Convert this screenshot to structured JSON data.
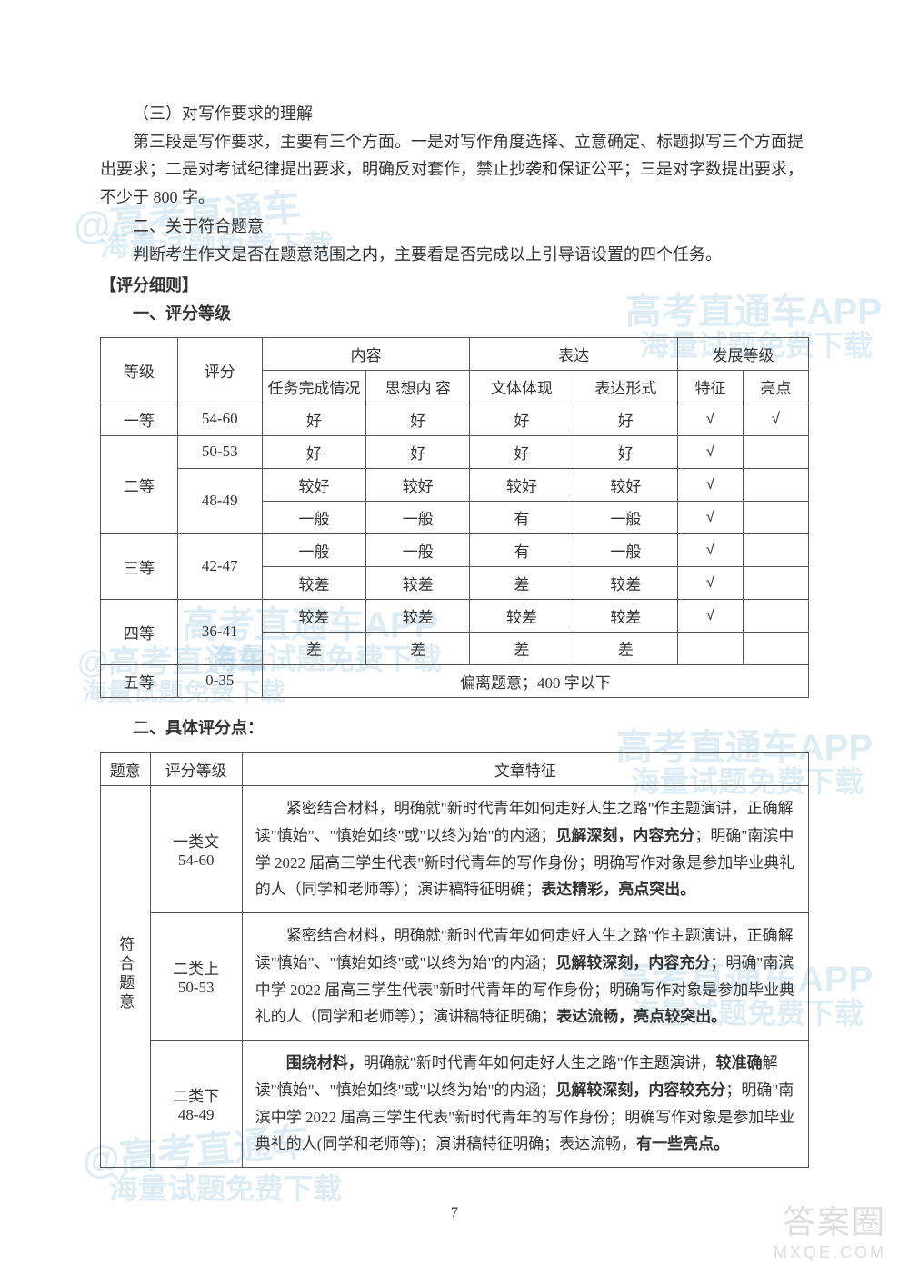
{
  "watermarks": {
    "main": "@高考直通车",
    "sub": "海量试题免费下载",
    "app": "高考直通车APP",
    "bottom_main": "答案圈",
    "bottom_sub": "MXQE.COM"
  },
  "text": {
    "section3_title": "（三）对写作要求的理解",
    "section3_para": "第三段是写作要求，主要有三个方面。一是对写作角度选择、立意确定、标题拟写三个方面提出要求；二是对考试纪律提出要求，明确反对套作，禁止抄袭和保证公平；三是对字数提出要求，不少于 800 字。",
    "section2_title": "二、关于符合题意",
    "section2_para": "判断考生作文是否在题意范围之内，主要看是否完成以上引导语设置的四个任务。",
    "rules_title": "【评分细则】",
    "rules_sub1": "一、评分等级",
    "rules_sub2": "二、具体评分点："
  },
  "table1": {
    "headers": {
      "grade": "等级",
      "score": "评分",
      "content": "内容",
      "content_sub1": "任务完成情况",
      "content_sub2": "思想内 容",
      "expression": "表达",
      "expression_sub1": "文体体现",
      "expression_sub2": "表达形式",
      "dev": "发展等级",
      "dev_sub1": "特征",
      "dev_sub2": "亮点"
    },
    "rows": [
      {
        "grade": "一等",
        "score": "54-60",
        "c1": "好",
        "c2": "好",
        "c3": "好",
        "c4": "好",
        "d1": "√",
        "d2": "√"
      },
      {
        "grade": "二等",
        "score": "50-53",
        "c1": "好",
        "c2": "好",
        "c3": "好",
        "c4": "好",
        "d1": "√",
        "d2": ""
      },
      {
        "grade": "",
        "score": "48-49",
        "c1": "较好",
        "c2": "较好",
        "c3": "较好",
        "c4": "较好",
        "d1": "√",
        "d2": ""
      },
      {
        "grade": "",
        "score": "",
        "c1": "一般",
        "c2": "一般",
        "c3": "有",
        "c4": "一般",
        "d1": "√",
        "d2": ""
      },
      {
        "grade": "三等",
        "score": "42-47",
        "c1": "一般",
        "c2": "一般",
        "c3": "有",
        "c4": "一般",
        "d1": "√",
        "d2": ""
      },
      {
        "grade": "",
        "score": "",
        "c1": "较差",
        "c2": "较差",
        "c3": "差",
        "c4": "较差",
        "d1": "√",
        "d2": ""
      },
      {
        "grade": "四等",
        "score": "36-41",
        "c1": "较差",
        "c2": "较差",
        "c3": "较差",
        "c4": "较差",
        "d1": "√",
        "d2": ""
      },
      {
        "grade": "",
        "score": "",
        "c1": "差",
        "c2": "差",
        "c3": "差",
        "c4": "差",
        "d1": "",
        "d2": ""
      },
      {
        "grade": "五等",
        "score": "0-35",
        "merged": "偏离题意；400 字以下"
      }
    ]
  },
  "table2": {
    "headers": {
      "theme": "题意",
      "level": "评分等级",
      "feature": "文章特征"
    },
    "theme_label": "符合题意",
    "rows": [
      {
        "level": "一类文\n54-60",
        "desc_parts": [
          {
            "t": "紧密结合材料，明确就\"新时代青年如何走好人生之路\"作主题演讲，正确解读\"慎始\"、\"慎始如终\"或\"以终为始\"的内涵；",
            "b": false,
            "indent": true
          },
          {
            "t": "见解深刻，内容充分",
            "b": true
          },
          {
            "t": "；明确\"南滨中学 2022 届高三学生代表\"新时代青年的写作身份；明确写作对象是参加毕业典礼的人（同学和老师等）；演讲稿特征明确；",
            "b": false
          },
          {
            "t": "表达精彩，亮点突出。",
            "b": true
          }
        ]
      },
      {
        "level": "二类上\n50-53",
        "desc_parts": [
          {
            "t": "紧密结合材料，明确就\"新时代青年如何走好人生之路\"作主题演讲，正确解读\"慎始\"、\"慎始如终\"或\"以终为始\"的内涵；",
            "b": false,
            "indent": true
          },
          {
            "t": "见解较深刻，内容充分",
            "b": true
          },
          {
            "t": "；明确\"南滨中学 2022 届高三学生代表\"新时代青年的写作身份；明确写作对象是参加毕业典礼的人（同学和老师等）；演讲稿特征明确；",
            "b": false
          },
          {
            "t": "表达流畅，亮点较突出。",
            "b": true
          }
        ]
      },
      {
        "level": "二类下\n48-49",
        "desc_parts": [
          {
            "t": "围绕材料，",
            "b": true,
            "indent": true
          },
          {
            "t": "明确就\"新时代青年如何走好人生之路\"作主题演讲，",
            "b": false
          },
          {
            "t": "较准确",
            "b": true
          },
          {
            "t": "解读\"慎始\"、\"慎始如终\"或\"以终为始\"的内涵；",
            "b": false
          },
          {
            "t": "见解较深刻，内容较充分",
            "b": true
          },
          {
            "t": "；明确\"南滨中学 2022 届高三学生代表\"新时代青年的写作身份；明确写作对象是参加毕业典礼的人(同学和老师等)；演讲稿特征明确；表达流畅，",
            "b": false
          },
          {
            "t": "有一些亮点。",
            "b": true
          }
        ]
      }
    ]
  },
  "page_number": "7"
}
